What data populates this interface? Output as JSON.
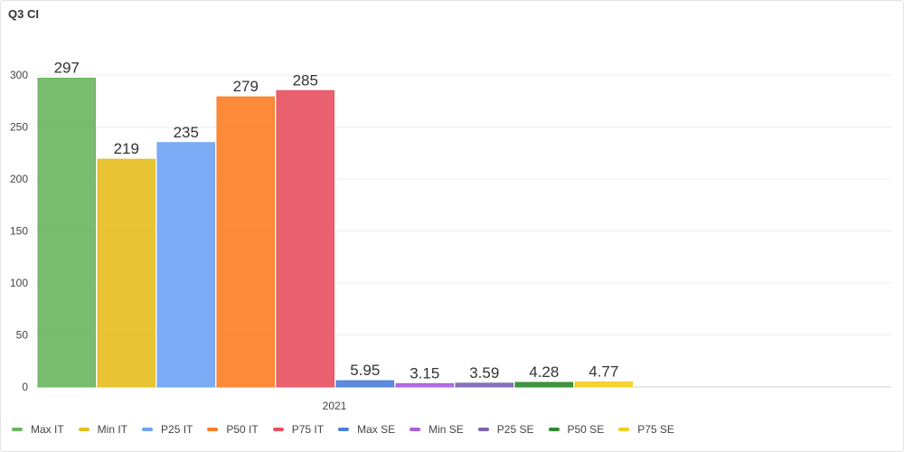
{
  "chart_data": {
    "type": "bar",
    "title": "Q3 CI",
    "xlabel": "",
    "ylabel": "",
    "ylim": [
      0,
      300
    ],
    "yticks": [
      0,
      50,
      100,
      150,
      200,
      250,
      300
    ],
    "grid": true,
    "legend_position": "bottom-left",
    "categories": [
      "2021"
    ],
    "series": [
      {
        "name": "Max IT",
        "values": [
          297
        ],
        "label": "297",
        "color": "#6ab55f"
      },
      {
        "name": "Min IT",
        "values": [
          219
        ],
        "label": "219",
        "color": "#e6be1e"
      },
      {
        "name": "P25 IT",
        "values": [
          235
        ],
        "label": "235",
        "color": "#6fa3f5"
      },
      {
        "name": "P50 IT",
        "values": [
          279
        ],
        "label": "279",
        "color": "#fd7d24"
      },
      {
        "name": "P75 IT",
        "values": [
          285
        ],
        "label": "285",
        "color": "#e8505f"
      },
      {
        "name": "Max SE",
        "values": [
          5.95
        ],
        "label": "5.95",
        "color": "#4a7fdc"
      },
      {
        "name": "Min SE",
        "values": [
          3.15
        ],
        "label": "3.15",
        "color": "#a95ee0"
      },
      {
        "name": "P25 SE",
        "values": [
          3.59
        ],
        "label": "3.59",
        "color": "#7b63b5"
      },
      {
        "name": "P50 SE",
        "values": [
          4.28
        ],
        "label": "4.28",
        "color": "#2e8a2e"
      },
      {
        "name": "P75 SE",
        "values": [
          4.77
        ],
        "label": "4.77",
        "color": "#f2cf1f"
      }
    ]
  }
}
